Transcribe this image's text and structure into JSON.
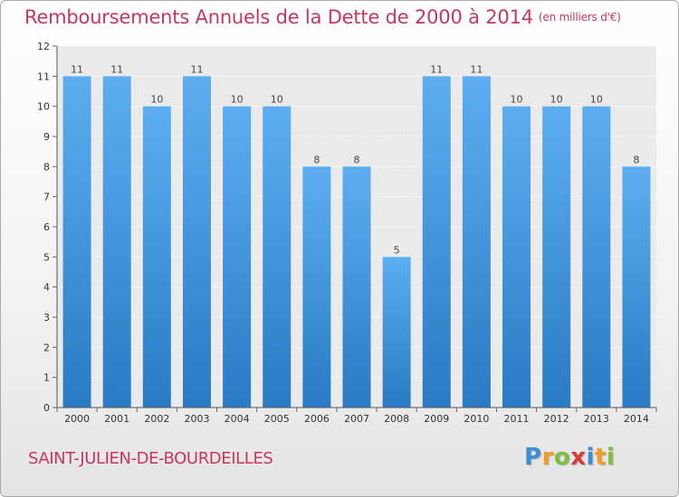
{
  "title": "Remboursements Annuels de la Dette de 2000 à 2014",
  "unit": "(en milliers d'€)",
  "commune": "SAINT-JULIEN-DE-BOURDEILLES",
  "brand": {
    "letters": [
      "P",
      "r",
      "o",
      "x",
      "i",
      "t",
      "i"
    ],
    "colors": [
      "#3a8fd6",
      "#f39c1f",
      "#7fbf3f",
      "#d63a3a",
      "#3a8fd6",
      "#f39c1f",
      "#7fbf3f"
    ]
  },
  "colors": {
    "bar_top": "#5daef0",
    "bar_bottom": "#2a7ac4",
    "title": "#c8365f"
  },
  "chart_data": {
    "type": "bar",
    "categories": [
      "2000",
      "2001",
      "2002",
      "2003",
      "2004",
      "2005",
      "2006",
      "2007",
      "2008",
      "2009",
      "2010",
      "2011",
      "2012",
      "2013",
      "2014"
    ],
    "values": [
      11,
      11,
      10,
      11,
      10,
      10,
      8,
      8,
      5,
      11,
      11,
      10,
      10,
      10,
      8
    ],
    "yticks": [
      0,
      1,
      2,
      3,
      4,
      5,
      6,
      7,
      8,
      9,
      10,
      11,
      12
    ],
    "ylim": [
      0,
      12
    ],
    "grid": true,
    "legend": false
  }
}
